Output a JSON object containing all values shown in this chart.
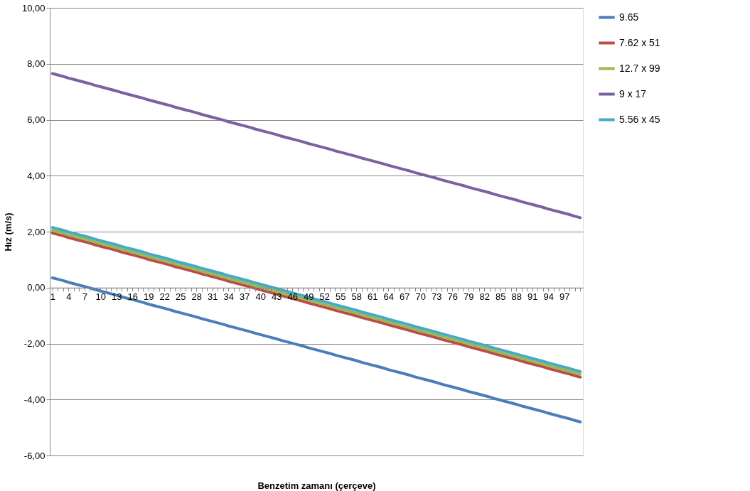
{
  "chart_data": {
    "type": "line",
    "xlabel": "Benzetim zamanı (çerçeve)",
    "ylabel": "Hız (m/s)",
    "categories": [
      "1",
      null,
      null,
      "4",
      null,
      null,
      "7",
      null,
      null,
      "10",
      null,
      null,
      "13",
      null,
      null,
      "16",
      null,
      null,
      "19",
      null,
      null,
      "22",
      null,
      null,
      "25",
      null,
      null,
      "28",
      null,
      null,
      "31",
      null,
      null,
      "34",
      null,
      null,
      "37",
      null,
      null,
      "40",
      null,
      null,
      "43",
      null,
      null,
      "46",
      null,
      null,
      "49",
      null,
      null,
      "52",
      null,
      null,
      "55",
      null,
      null,
      "58",
      null,
      null,
      "61",
      null,
      null,
      "64",
      null,
      null,
      "67",
      null,
      null,
      "70",
      null,
      null,
      "73",
      null,
      null,
      "76",
      null,
      null,
      "79",
      null,
      null,
      "82",
      null,
      null,
      "85",
      null,
      null,
      "88",
      null,
      null,
      "91",
      null,
      null,
      "94",
      null,
      null,
      "97",
      null,
      null,
      null
    ],
    "ylim": [
      -6,
      10
    ],
    "yticks": [
      {
        "value": -6,
        "label": "-6,00"
      },
      {
        "value": -4,
        "label": "-4,00"
      },
      {
        "value": -2,
        "label": "-2,00"
      },
      {
        "value": 0,
        "label": "0,00"
      },
      {
        "value": 2,
        "label": "2,00"
      },
      {
        "value": 4,
        "label": "4,00"
      },
      {
        "value": 6,
        "label": "6,00"
      },
      {
        "value": 8,
        "label": "8,00"
      },
      {
        "value": 10,
        "label": "10,00"
      }
    ],
    "grid": "y",
    "legend": "right",
    "marker": "none",
    "line_style": "solid",
    "series": [
      {
        "name": "9.65",
        "color": "#4a7ebb",
        "values": [
          0.35,
          0.3,
          0.25,
          0.19,
          0.14,
          0.09,
          0.04,
          -0.01,
          -0.07,
          -0.12,
          -0.17,
          -0.22,
          -0.27,
          -0.33,
          -0.38,
          -0.43,
          -0.48,
          -0.53,
          -0.59,
          -0.64,
          -0.69,
          -0.74,
          -0.79,
          -0.85,
          -0.9,
          -0.95,
          -1.0,
          -1.05,
          -1.11,
          -1.16,
          -1.21,
          -1.26,
          -1.31,
          -1.37,
          -1.42,
          -1.47,
          -1.52,
          -1.57,
          -1.63,
          -1.68,
          -1.73,
          -1.78,
          -1.83,
          -1.89,
          -1.94,
          -1.99,
          -2.04,
          -2.09,
          -2.15,
          -2.2,
          -2.25,
          -2.3,
          -2.35,
          -2.41,
          -2.46,
          -2.51,
          -2.56,
          -2.61,
          -2.67,
          -2.72,
          -2.77,
          -2.82,
          -2.87,
          -2.93,
          -2.98,
          -3.03,
          -3.08,
          -3.13,
          -3.19,
          -3.24,
          -3.29,
          -3.34,
          -3.39,
          -3.45,
          -3.5,
          -3.55,
          -3.6,
          -3.65,
          -3.71,
          -3.76,
          -3.81,
          -3.86,
          -3.91,
          -3.97,
          -4.02,
          -4.07,
          -4.12,
          -4.17,
          -4.23,
          -4.28,
          -4.33,
          -4.38,
          -4.43,
          -4.49,
          -4.54,
          -4.59,
          -4.64,
          -4.69,
          -4.75,
          -4.8
        ]
      },
      {
        "name": "7.62 x 51",
        "color": "#be4b48",
        "values": [
          1.95,
          1.9,
          1.85,
          1.79,
          1.74,
          1.69,
          1.64,
          1.59,
          1.53,
          1.48,
          1.43,
          1.38,
          1.33,
          1.27,
          1.22,
          1.17,
          1.12,
          1.07,
          1.01,
          0.96,
          0.91,
          0.86,
          0.81,
          0.75,
          0.7,
          0.65,
          0.6,
          0.55,
          0.49,
          0.44,
          0.39,
          0.34,
          0.29,
          0.23,
          0.18,
          0.13,
          0.08,
          0.03,
          -0.03,
          -0.08,
          -0.13,
          -0.18,
          -0.23,
          -0.29,
          -0.34,
          -0.39,
          -0.44,
          -0.49,
          -0.55,
          -0.6,
          -0.65,
          -0.7,
          -0.75,
          -0.81,
          -0.86,
          -0.91,
          -0.96,
          -1.01,
          -1.07,
          -1.12,
          -1.17,
          -1.22,
          -1.27,
          -1.33,
          -1.38,
          -1.43,
          -1.48,
          -1.53,
          -1.59,
          -1.64,
          -1.69,
          -1.74,
          -1.79,
          -1.85,
          -1.9,
          -1.95,
          -2.0,
          -2.05,
          -2.11,
          -2.16,
          -2.21,
          -2.26,
          -2.31,
          -2.37,
          -2.42,
          -2.47,
          -2.52,
          -2.57,
          -2.63,
          -2.68,
          -2.73,
          -2.78,
          -2.83,
          -2.89,
          -2.94,
          -2.99,
          -3.04,
          -3.09,
          -3.15,
          -3.2
        ]
      },
      {
        "name": "12.7 x 99",
        "color": "#98b954",
        "values": [
          2.05,
          2.0,
          1.95,
          1.89,
          1.84,
          1.79,
          1.74,
          1.69,
          1.63,
          1.58,
          1.53,
          1.48,
          1.43,
          1.37,
          1.32,
          1.27,
          1.22,
          1.17,
          1.11,
          1.06,
          1.01,
          0.96,
          0.91,
          0.85,
          0.8,
          0.75,
          0.7,
          0.65,
          0.59,
          0.54,
          0.49,
          0.44,
          0.39,
          0.33,
          0.28,
          0.23,
          0.18,
          0.13,
          0.07,
          0.02,
          -0.03,
          -0.08,
          -0.13,
          -0.19,
          -0.24,
          -0.29,
          -0.34,
          -0.39,
          -0.45,
          -0.5,
          -0.55,
          -0.6,
          -0.65,
          -0.71,
          -0.76,
          -0.81,
          -0.86,
          -0.91,
          -0.97,
          -1.02,
          -1.07,
          -1.12,
          -1.17,
          -1.23,
          -1.28,
          -1.33,
          -1.38,
          -1.43,
          -1.49,
          -1.54,
          -1.59,
          -1.64,
          -1.69,
          -1.75,
          -1.8,
          -1.85,
          -1.9,
          -1.95,
          -2.01,
          -2.06,
          -2.11,
          -2.16,
          -2.21,
          -2.27,
          -2.32,
          -2.37,
          -2.42,
          -2.47,
          -2.53,
          -2.58,
          -2.63,
          -2.68,
          -2.73,
          -2.79,
          -2.84,
          -2.89,
          -2.94,
          -2.99,
          -3.05,
          -3.1
        ]
      },
      {
        "name": "9 x 17",
        "color": "#7d60a0",
        "values": [
          7.65,
          7.6,
          7.55,
          7.49,
          7.44,
          7.39,
          7.34,
          7.29,
          7.23,
          7.18,
          7.13,
          7.08,
          7.03,
          6.97,
          6.92,
          6.87,
          6.82,
          6.77,
          6.71,
          6.66,
          6.61,
          6.56,
          6.51,
          6.45,
          6.4,
          6.35,
          6.3,
          6.25,
          6.19,
          6.14,
          6.09,
          6.04,
          5.99,
          5.93,
          5.88,
          5.83,
          5.78,
          5.73,
          5.67,
          5.62,
          5.57,
          5.52,
          5.47,
          5.41,
          5.36,
          5.31,
          5.26,
          5.21,
          5.15,
          5.1,
          5.05,
          5.0,
          4.95,
          4.89,
          4.84,
          4.79,
          4.74,
          4.69,
          4.63,
          4.58,
          4.53,
          4.48,
          4.43,
          4.37,
          4.32,
          4.27,
          4.22,
          4.17,
          4.11,
          4.06,
          4.01,
          3.96,
          3.91,
          3.85,
          3.8,
          3.75,
          3.7,
          3.65,
          3.59,
          3.54,
          3.49,
          3.44,
          3.39,
          3.33,
          3.28,
          3.23,
          3.18,
          3.13,
          3.07,
          3.02,
          2.97,
          2.92,
          2.87,
          2.81,
          2.76,
          2.71,
          2.66,
          2.61,
          2.55,
          2.5
        ]
      },
      {
        "name": "5.56 x 45",
        "color": "#46aac5",
        "values": [
          2.15,
          2.1,
          2.05,
          1.99,
          1.94,
          1.89,
          1.84,
          1.79,
          1.73,
          1.68,
          1.63,
          1.58,
          1.53,
          1.47,
          1.42,
          1.37,
          1.32,
          1.27,
          1.21,
          1.16,
          1.11,
          1.06,
          1.01,
          0.95,
          0.9,
          0.85,
          0.8,
          0.75,
          0.69,
          0.64,
          0.59,
          0.54,
          0.49,
          0.43,
          0.38,
          0.33,
          0.28,
          0.23,
          0.17,
          0.12,
          0.07,
          0.02,
          -0.03,
          -0.09,
          -0.14,
          -0.19,
          -0.24,
          -0.29,
          -0.35,
          -0.4,
          -0.45,
          -0.5,
          -0.55,
          -0.61,
          -0.66,
          -0.71,
          -0.76,
          -0.81,
          -0.87,
          -0.92,
          -0.97,
          -1.02,
          -1.07,
          -1.13,
          -1.18,
          -1.23,
          -1.28,
          -1.33,
          -1.39,
          -1.44,
          -1.49,
          -1.54,
          -1.59,
          -1.65,
          -1.7,
          -1.75,
          -1.8,
          -1.85,
          -1.91,
          -1.96,
          -2.01,
          -2.06,
          -2.11,
          -2.17,
          -2.22,
          -2.27,
          -2.32,
          -2.37,
          -2.43,
          -2.48,
          -2.53,
          -2.58,
          -2.63,
          -2.69,
          -2.74,
          -2.79,
          -2.84,
          -2.89,
          -2.95,
          -3.0
        ]
      }
    ]
  }
}
